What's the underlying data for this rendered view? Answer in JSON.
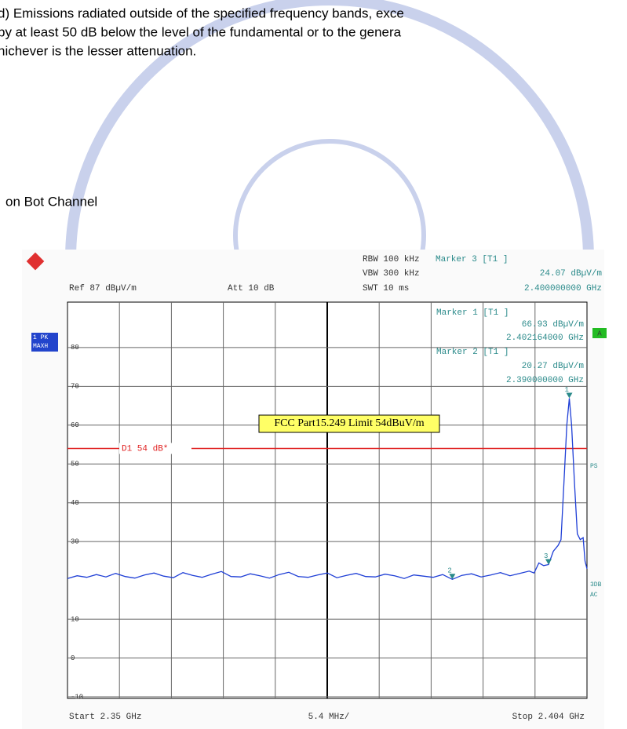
{
  "document": {
    "lines": [
      "d) Emissions radiated outside of the specified frequency bands, exce",
      "by at least 50 dB below the level of the fundamental or to the genera",
      "hichever is the lesser attenuation."
    ],
    "caption": "on Bot Channel"
  },
  "chart_data": {
    "type": "line",
    "labels": {
      "rbw": "RBW 100 kHz",
      "vbw": "VBW 300 kHz",
      "swt": "SWT 10 ms",
      "ref": "Ref 87 dBµV/m",
      "att": "Att 10 dB",
      "start": "Start 2.35 GHz",
      "div": "5.4 MHz/",
      "stop": "Stop 2.404 GHz",
      "trace": "1 PK",
      "mode": "MAXH",
      "a": "A",
      "ps": "PS",
      "db3": "3DB",
      "ac": "AC"
    },
    "readouts": [
      {
        "title": "Marker 3 [T1 ]",
        "value": "24.07 dBµV/m",
        "freq": "2.400000000 GHz"
      },
      {
        "title": "Marker 1 [T1 ]",
        "value": "66.93 dBµV/m",
        "freq": "2.402164000 GHz"
      },
      {
        "title": "Marker 2 [T1 ]",
        "value": "20.27 dBµV/m",
        "freq": "2.390000000 GHz"
      }
    ],
    "annotation": "FCC Part15.249 Limit 54dBuV/m",
    "limit": {
      "label": "D1 54 dB*",
      "value": 54
    },
    "xlim": [
      2.35,
      2.404
    ],
    "ylim": [
      -10.4,
      91.7
    ],
    "yticks": [
      80,
      70,
      60,
      50,
      40,
      30,
      10,
      0,
      -10
    ],
    "markers": [
      {
        "label": "1",
        "x": 2.402164,
        "y": 66.93
      },
      {
        "label": "2",
        "x": 2.39,
        "y": 20.27
      },
      {
        "label": "3",
        "x": 2.4,
        "y": 24.07
      }
    ],
    "series": [
      {
        "name": "Trace 1",
        "color": "#1f3fd6",
        "x": [
          2.35,
          2.351,
          2.352,
          2.353,
          2.354,
          2.355,
          2.356,
          2.357,
          2.358,
          2.359,
          2.36,
          2.361,
          2.362,
          2.363,
          2.364,
          2.365,
          2.366,
          2.367,
          2.368,
          2.369,
          2.37,
          2.371,
          2.372,
          2.373,
          2.374,
          2.375,
          2.376,
          2.377,
          2.378,
          2.379,
          2.38,
          2.381,
          2.382,
          2.383,
          2.384,
          2.385,
          2.386,
          2.387,
          2.388,
          2.389,
          2.39,
          2.391,
          2.392,
          2.393,
          2.394,
          2.395,
          2.396,
          2.397,
          2.398,
          2.3985,
          2.399,
          2.3995,
          2.4,
          2.4005,
          2.401,
          2.4013,
          2.4016,
          2.4019,
          2.402164,
          2.4024,
          2.4027,
          2.403,
          2.4033,
          2.4036,
          2.4038,
          2.404
        ],
        "values": [
          20.5,
          21.2,
          20.8,
          21.5,
          20.9,
          21.8,
          21.0,
          20.6,
          21.4,
          21.9,
          21.1,
          20.7,
          22.0,
          21.3,
          20.8,
          21.6,
          22.3,
          21.0,
          20.9,
          21.7,
          21.2,
          20.6,
          21.5,
          22.1,
          21.0,
          20.8,
          21.4,
          21.9,
          20.7,
          21.3,
          21.8,
          21.0,
          20.9,
          21.6,
          21.2,
          20.5,
          21.4,
          21.1,
          20.8,
          21.5,
          20.27,
          21.3,
          21.7,
          20.9,
          21.4,
          22.0,
          21.2,
          21.8,
          22.4,
          21.9,
          24.5,
          23.8,
          24.07,
          27.5,
          29.0,
          30.5,
          45,
          60,
          66.93,
          60,
          45,
          32,
          30.5,
          31,
          25,
          23
        ]
      }
    ]
  }
}
